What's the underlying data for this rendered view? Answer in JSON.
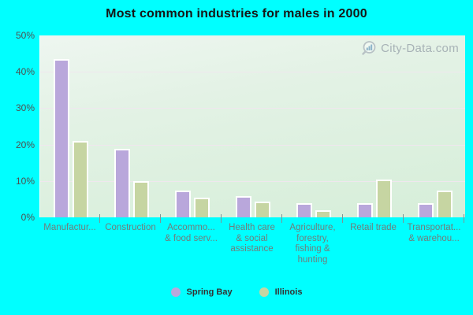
{
  "title": "Most common industries for males in 2000",
  "watermark": {
    "text": "City-Data.com",
    "icon": "magnifier-bar-chart-icon"
  },
  "colors": {
    "background": "#00ffff",
    "spring_bay_bar": "#b9a7db",
    "illinois_bar": "#c6d5a2",
    "bar_border": "#ffffff",
    "plot_gradient_top": "#eef6f0",
    "plot_gradient_bottom": "#d6eed9",
    "gridline": "#efe7ee",
    "title_text": "#161616",
    "y_axis_text": "#4f4f4f",
    "x_axis_text": "#6f7e7c",
    "watermark_text": "#939da6",
    "watermark_icon_bars": "#6f9fc0"
  },
  "y_axis": {
    "tick_labels": [
      "50%",
      "40%",
      "30%",
      "20%",
      "10%",
      "0%"
    ]
  },
  "legend": {
    "items": [
      {
        "label": "Spring Bay",
        "color": "#b9a7db"
      },
      {
        "label": "Illinois",
        "color": "#c6d5a2"
      }
    ]
  },
  "chart_data": {
    "type": "bar",
    "title": "Most common industries for males in 2000",
    "categories": [
      "Manufacturing",
      "Construction",
      "Accommodation & food services",
      "Health care & social assistance",
      "Agriculture, forestry, fishing & hunting",
      "Retail trade",
      "Transportation & warehousing"
    ],
    "displayed_category_labels": [
      "Manufactur...",
      "Construction",
      "Accommo...\n& food serv...",
      "Health care\n& social\nassistance",
      "Agriculture,\nforestry,\nfishing &\nhunting",
      "Retail trade",
      "Transportat...\n& warehou..."
    ],
    "series": [
      {
        "name": "Spring Bay",
        "color": "#b9a7db",
        "values": [
          43,
          18.5,
          7,
          5.5,
          3.5,
          3.5,
          3.5
        ]
      },
      {
        "name": "Illinois",
        "color": "#c6d5a2",
        "values": [
          20.5,
          9.5,
          5,
          4,
          1.5,
          10,
          7
        ]
      }
    ],
    "xlabel": "",
    "ylabel": "",
    "ylim": [
      0,
      50
    ],
    "grid": true,
    "gridline_step_percent": 10,
    "legend_position": "bottom"
  }
}
